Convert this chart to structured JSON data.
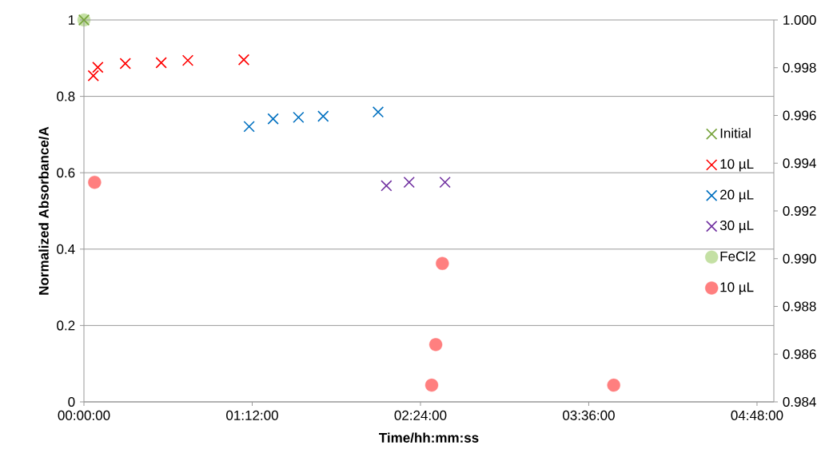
{
  "chart_data": {
    "type": "scatter",
    "xlabel": "Time/hh:mm:ss",
    "ylabel": "Normalized Absorbance/A",
    "xlim": [
      0,
      4.92
    ],
    "xticks": [
      {
        "value": 0,
        "label": "00:00:00"
      },
      {
        "value": 1.2,
        "label": "01:12:00"
      },
      {
        "value": 2.4,
        "label": "02:24:00"
      },
      {
        "value": 3.6,
        "label": "03:36:00"
      },
      {
        "value": 4.8,
        "label": "04:48:00"
      }
    ],
    "ylim": [
      0,
      1
    ],
    "yticks": [
      0,
      0.2,
      0.4,
      0.6,
      0.8,
      1
    ],
    "y2lim": [
      0.984,
      1.0
    ],
    "y2ticks": [
      {
        "value": 0.984,
        "label": "0.984"
      },
      {
        "value": 0.986,
        "label": "0.986"
      },
      {
        "value": 0.988,
        "label": "0.988"
      },
      {
        "value": 0.99,
        "label": "0.990"
      },
      {
        "value": 0.992,
        "label": "0.992"
      },
      {
        "value": 0.994,
        "label": "0.994"
      },
      {
        "value": 0.996,
        "label": "0.996"
      },
      {
        "value": 0.998,
        "label": "0.998"
      },
      {
        "value": 1.0,
        "label": "1.000"
      }
    ],
    "grid": "y",
    "legend": "right",
    "series": [
      {
        "name": "Initial",
        "color": "#77a33c",
        "marker": "cross",
        "x": [
          0
        ],
        "values": [
          1
        ]
      },
      {
        "name": "10 µL",
        "color": "#ff0000",
        "marker": "cross",
        "x": [
          0.067,
          0.099,
          0.295,
          0.551,
          0.741,
          1.14
        ],
        "values": [
          0.854,
          0.876,
          0.886,
          0.888,
          0.894,
          0.896
        ]
      },
      {
        "name": "20 µL",
        "color": "#0070c0",
        "marker": "cross",
        "x": [
          1.178,
          1.349,
          1.53,
          1.706,
          2.098
        ],
        "values": [
          0.721,
          0.741,
          0.745,
          0.748,
          0.759
        ]
      },
      {
        "name": "30 µL",
        "color": "#7030a0",
        "marker": "cross",
        "x": [
          2.157,
          2.319,
          2.575
        ],
        "values": [
          0.566,
          0.575,
          0.575
        ]
      },
      {
        "name": "FeCl2",
        "color": "#c4e0a4",
        "marker": "circle",
        "axis": "y2",
        "x": [
          0
        ],
        "values": [
          1.0
        ]
      },
      {
        "name": "10 µL",
        "color": "#ff7f7f",
        "marker": "circle",
        "axis": "y2",
        "x": [
          0.076,
          2.556,
          2.509,
          2.48,
          3.778
        ],
        "values": [
          0.9932,
          0.9898,
          0.9864,
          0.9847,
          0.9847
        ]
      }
    ]
  }
}
